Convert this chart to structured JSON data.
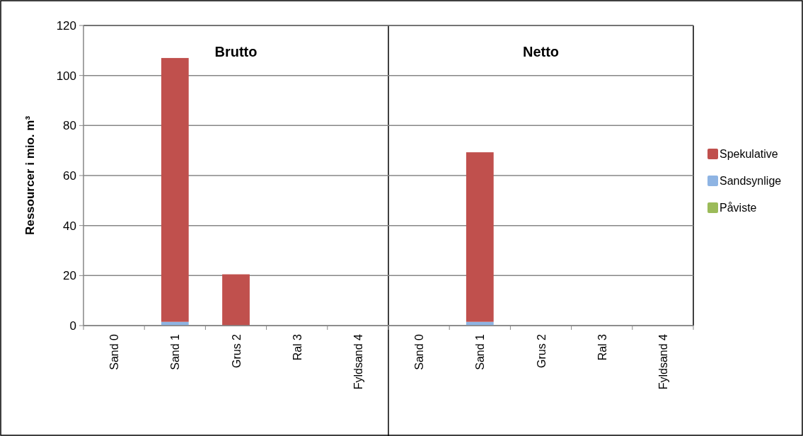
{
  "chart_data": [
    {
      "type": "bar",
      "stacked": true,
      "title": "Brutto",
      "ylabel": "Ressourcer i mio. m³",
      "categories": [
        "Sand 0",
        "Sand 1",
        "Grus 2",
        "Ral 3",
        "Fyldsand 4"
      ],
      "ylim": [
        0,
        120
      ],
      "yticks": [
        0,
        20,
        40,
        60,
        80,
        100,
        120
      ],
      "grid": "y",
      "legend": false,
      "series": [
        {
          "color": "#9bbb59",
          "values": [
            0,
            0,
            0,
            0,
            0
          ]
        },
        {
          "color": "#8eb4e3",
          "values": [
            0,
            1.5,
            0,
            0,
            0
          ]
        },
        {
          "color": "#c0504d",
          "values": [
            0,
            105.5,
            20.5,
            0,
            0
          ]
        }
      ]
    },
    {
      "type": "bar",
      "stacked": true,
      "title": "Netto",
      "categories": [
        "Sand 0",
        "Sand 1",
        "Grus 2",
        "Ral 3",
        "Fyldsand 4"
      ],
      "ylim": [
        0,
        120
      ],
      "yticks": [
        0,
        20,
        40,
        60,
        80,
        100,
        120
      ],
      "grid": "y",
      "legend": "right",
      "tick_labels": "x",
      "series": [
        {
          "name": "Påviste",
          "color": "#9bbb59",
          "values": [
            0,
            0,
            0,
            0,
            0
          ]
        },
        {
          "name": "Sandsynlige",
          "color": "#8eb4e3",
          "values": [
            0,
            1.5,
            0,
            0,
            0
          ]
        },
        {
          "name": "Spekulative",
          "color": "#c0504d",
          "values": [
            0,
            67.8,
            0,
            0,
            0
          ]
        }
      ]
    }
  ]
}
